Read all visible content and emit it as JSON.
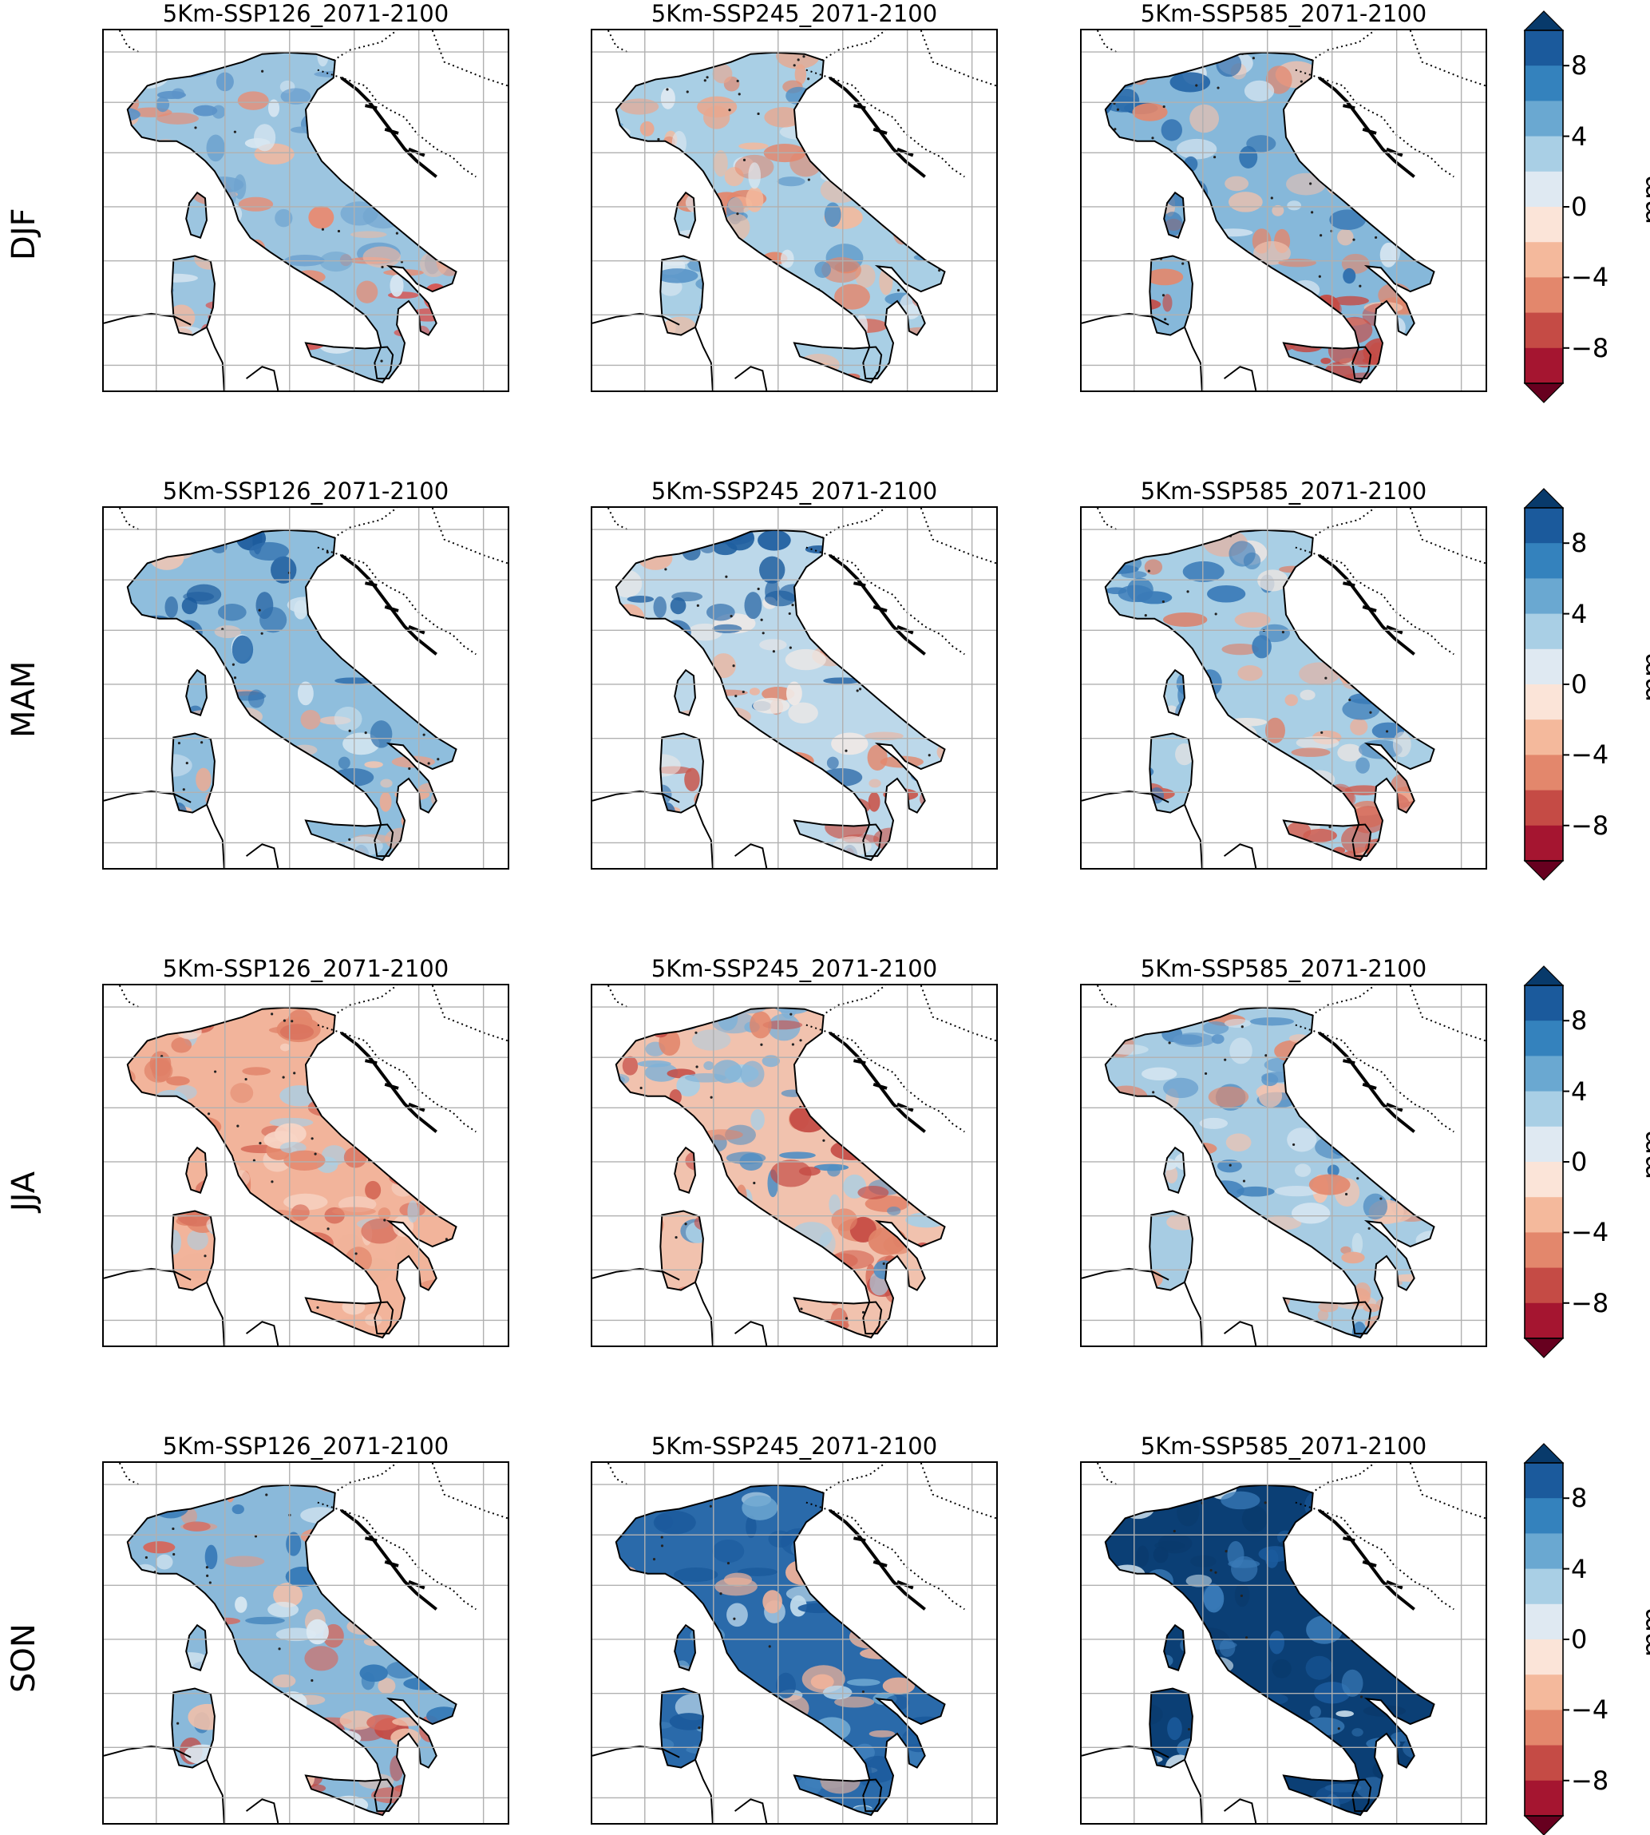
{
  "row_labels": [
    "DJF",
    "MAM",
    "JJA",
    "SON"
  ],
  "column_titles": [
    "5Km-SSP126_2071-2100",
    "5Km-SSP245_2071-2100",
    "5Km-SSP585_2071-2100"
  ],
  "colorbar": {
    "unit": "mm",
    "tick_labels": [
      "8",
      "4",
      "0",
      "−4",
      "−8"
    ],
    "tick_values": [
      8,
      4,
      0,
      -4,
      -8
    ],
    "range": [
      -10,
      10
    ],
    "bins": 10,
    "extend": "both",
    "colors_top_to_bottom": [
      "#1b5a9c",
      "#3482bd",
      "#6aa8d1",
      "#a9cfe5",
      "#dfe9f2",
      "#fbe4d8",
      "#f4b99c",
      "#e3876c",
      "#c54b45",
      "#a51530"
    ],
    "over_color": "#083a6b",
    "under_color": "#67001f"
  },
  "panels": [
    {
      "row": "DJF",
      "title": "5Km-SSP126_2071-2100",
      "tone": [
        "#9cc5e0",
        "#d7e6f1",
        "#f0b8a1",
        "#6fa3cf",
        "#e88b72"
      ],
      "north": "#5b93c8",
      "south": "#d9534f"
    },
    {
      "row": "DJF",
      "title": "5Km-SSP245_2071-2100",
      "tone": [
        "#a9cfe5",
        "#e1ebf3",
        "#f4b99c",
        "#4f8ec4",
        "#e3876c"
      ],
      "north": "#e9a78f",
      "south": "#d66a5a"
    },
    {
      "row": "DJF",
      "title": "5Km-SSP585_2071-2100",
      "tone": [
        "#86b8da",
        "#d4e4f0",
        "#f0c1ad",
        "#2e6fae",
        "#e3876c"
      ],
      "north": "#1d5fa3",
      "south": "#c54b45"
    },
    {
      "row": "MAM",
      "title": "5Km-SSP126_2071-2100",
      "tone": [
        "#8fbedd",
        "#d2e4f0",
        "#f4c6b2",
        "#2f6fad",
        "#e9a08a"
      ],
      "north": "#1b5a9c",
      "south": "#ecab93"
    },
    {
      "row": "MAM",
      "title": "5Km-SSP245_2071-2100",
      "tone": [
        "#bcd8ea",
        "#f0e9e6",
        "#f0b29a",
        "#2a68a8",
        "#e3876c"
      ],
      "north": "#1f5e9f",
      "south": "#c9574c"
    },
    {
      "row": "MAM",
      "title": "5Km-SSP585_2071-2100",
      "tone": [
        "#a9cfe5",
        "#eee6e2",
        "#f0ad95",
        "#3a7bb8",
        "#de7e66"
      ],
      "north": "#3b7cb8",
      "south": "#cf5f52"
    },
    {
      "row": "JJA",
      "title": "5Km-SSP126_2071-2100",
      "tone": [
        "#f2b49b",
        "#f7d5c6",
        "#e3876c",
        "#a9cfe5",
        "#d56856"
      ],
      "north": "#df7f66",
      "south": "#f0b39a"
    },
    {
      "row": "JJA",
      "title": "5Km-SSP245_2071-2100",
      "tone": [
        "#f1c2ae",
        "#a9cfe5",
        "#e18368",
        "#4f8ec4",
        "#c54b45"
      ],
      "north": "#7fb1d7",
      "south": "#d56856"
    },
    {
      "row": "JJA",
      "title": "5Km-SSP585_2071-2100",
      "tone": [
        "#a7cce3",
        "#f2c4b0",
        "#e3876c",
        "#3f80bb",
        "#d7e6f1"
      ],
      "north": "#5d96c9",
      "south": "#eba68d"
    },
    {
      "row": "SON",
      "title": "5Km-SSP126_2071-2100",
      "tone": [
        "#8ab9da",
        "#f1c0aa",
        "#d6665a",
        "#3478b6",
        "#ddeaf3"
      ],
      "north": "#e7967e",
      "south": "#c54b45"
    },
    {
      "row": "SON",
      "title": "5Km-SSP245_2071-2100",
      "tone": [
        "#2a6aaa",
        "#6da7d1",
        "#c0dbec",
        "#f0b39a",
        "#1b5a9c"
      ],
      "north": "#1b5a9c",
      "south": "#3f80bb"
    },
    {
      "row": "SON",
      "title": "5Km-SSP585_2071-2100",
      "tone": [
        "#0b3f75",
        "#1b5a9c",
        "#cfe2ef",
        "#3a7bb8",
        "#0a3a6c"
      ],
      "north": "#0a3a6c",
      "south": "#2f6fad"
    }
  ]
}
